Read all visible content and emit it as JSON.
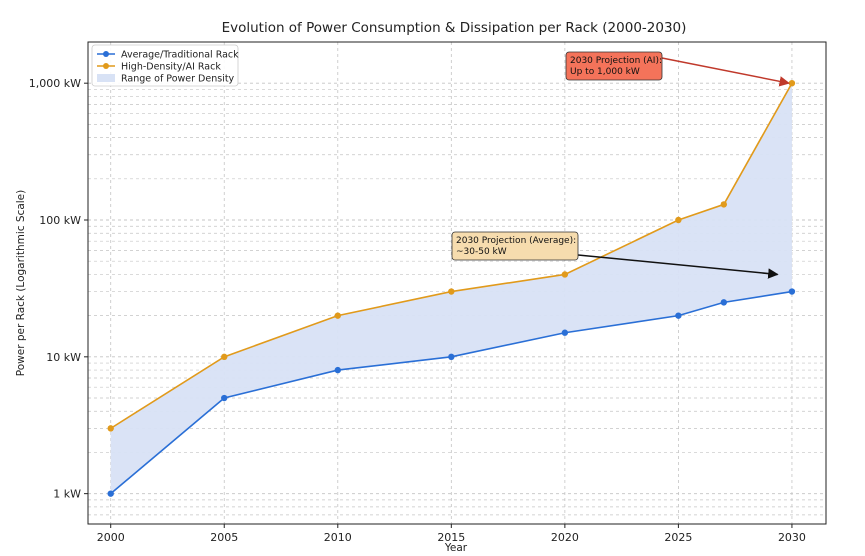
{
  "chart_data": {
    "type": "line",
    "title": "Evolution of Power Consumption & Dissipation per Rack (2000-2030)",
    "xlabel": "Year",
    "ylabel": "Power per Rack (Logarithmic Scale)",
    "x": [
      2000,
      2005,
      2010,
      2015,
      2020,
      2025,
      2027,
      2030
    ],
    "x_ticks": [
      2000,
      2005,
      2010,
      2015,
      2020,
      2025,
      2030
    ],
    "x_tick_labels": [
      "2000",
      "2005",
      "2010",
      "2015",
      "2020",
      "2025",
      "2030"
    ],
    "xlim": [
      1999,
      2031.5
    ],
    "y_scale": "log",
    "ylim": [
      0.6,
      2000
    ],
    "y_ticks": [
      1,
      10,
      100,
      1000
    ],
    "y_tick_labels": [
      "1 kW",
      "10 kW",
      "100 kW",
      "1,000 kW"
    ],
    "grid": true,
    "legend_position": "top-left",
    "series": [
      {
        "name": "Average/Traditional Rack",
        "color": "#2a6fd6",
        "values": [
          1,
          5,
          8,
          10,
          15,
          20,
          25,
          30
        ]
      },
      {
        "name": "High-Density/AI Rack",
        "color": "#e19a1b",
        "values": [
          3,
          10,
          20,
          30,
          40,
          100,
          130,
          1000
        ]
      }
    ],
    "fill_between": {
      "name": "Range of Power Density",
      "color": "#d8e2f5"
    },
    "annotations": [
      {
        "lines": [
          "2030 Projection (AI):",
          "Up to 1,000 kW"
        ],
        "box_color": "#f4735a",
        "target": [
          2030,
          1000
        ],
        "text_anchor_data": [
          2022.2,
          1000
        ],
        "arrow_color": "#c0392b"
      },
      {
        "lines": [
          "2030 Projection (Average):",
          "~30-50 kW"
        ],
        "box_color": "#f6dcae",
        "target": [
          2029.5,
          40
        ],
        "text_anchor_data": [
          2020.7,
          50
        ],
        "arrow_color": "#111111"
      }
    ]
  }
}
